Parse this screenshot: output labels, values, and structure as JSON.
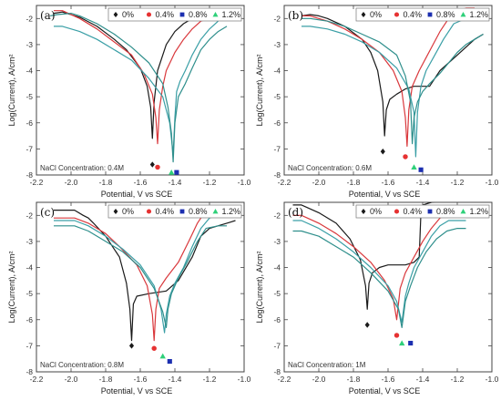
{
  "figure": {
    "legend_entries": [
      {
        "label": "0%",
        "color": "#1a1a1a",
        "marker": "diamond"
      },
      {
        "label": "0.4%",
        "color": "#e63232",
        "marker": "circle"
      },
      {
        "label": "0.8%",
        "color": "#1c2fb0",
        "marker": "square"
      },
      {
        "label": "1.2%",
        "color": "#2fd07a",
        "marker": "triangle"
      }
    ],
    "line_colors": [
      "#1a1a1a",
      "#d9383c",
      "#3a9fa6",
      "#2f8f8c"
    ]
  },
  "chart_data": [
    {
      "type": "line",
      "panel_label": "(a)",
      "xlabel": "Potential,   V vs SCE",
      "ylabel": "Log(Current), A/cm²",
      "xlim": [
        -2.2,
        -1.0
      ],
      "ylim": [
        -8,
        -1.5
      ],
      "xticks": [
        "-2.2",
        "-2.0",
        "-1.8",
        "-1.6",
        "-1.4",
        "-1.2",
        "-1.0"
      ],
      "yticks": [
        "-2",
        "-3",
        "-4",
        "-5",
        "-6",
        "-7",
        "-8"
      ],
      "annotation": "NaCl Concentration: 0.4M",
      "legend_position": "top-right",
      "series": [
        {
          "legend": "0%",
          "x": [
            -2.1,
            -2.05,
            -1.95,
            -1.85,
            -1.75,
            -1.68,
            -1.6,
            -1.56,
            -1.54,
            -1.53,
            -1.52,
            -1.5,
            -1.45,
            -1.4,
            -1.35,
            -1.3,
            -1.25,
            -1.2,
            -1.15
          ],
          "y": [
            -1.8,
            -1.75,
            -1.95,
            -2.3,
            -2.8,
            -3.2,
            -3.9,
            -4.6,
            -5.4,
            -6.6,
            -5.2,
            -4.0,
            -3.0,
            -2.5,
            -2.2,
            -2.0,
            -1.85,
            -1.75,
            -1.7
          ]
        },
        {
          "legend": "0.4%",
          "x": [
            -2.1,
            -2.05,
            -1.95,
            -1.85,
            -1.75,
            -1.65,
            -1.58,
            -1.53,
            -1.51,
            -1.5,
            -1.49,
            -1.47,
            -1.45,
            -1.4,
            -1.35,
            -1.3,
            -1.25,
            -1.2,
            -1.15
          ],
          "y": [
            -1.7,
            -1.7,
            -2.0,
            -2.4,
            -2.9,
            -3.4,
            -4.1,
            -4.9,
            -5.8,
            -6.8,
            -5.5,
            -4.6,
            -4.0,
            -3.3,
            -2.8,
            -2.4,
            -2.1,
            -2.0,
            -1.9
          ]
        },
        {
          "legend": "0.8%",
          "x": [
            -2.1,
            -2.05,
            -1.95,
            -1.85,
            -1.75,
            -1.65,
            -1.55,
            -1.47,
            -1.43,
            -1.41,
            -1.4,
            -1.39,
            -1.37,
            -1.34,
            -1.3,
            -1.25,
            -1.2,
            -1.15
          ],
          "y": [
            -2.3,
            -2.3,
            -2.5,
            -2.8,
            -3.2,
            -3.6,
            -4.3,
            -5.0,
            -6.0,
            -7.2,
            -5.8,
            -4.8,
            -4.4,
            -4.0,
            -3.4,
            -2.8,
            -2.4,
            -2.1
          ]
        },
        {
          "legend": "1.2%",
          "x": [
            -2.12,
            -2.08,
            -2.0,
            -1.95,
            -1.85,
            -1.75,
            -1.65,
            -1.55,
            -1.47,
            -1.44,
            -1.42,
            -1.41,
            -1.4,
            -1.38,
            -1.34,
            -1.3,
            -1.25,
            -1.2,
            -1.15,
            -1.1
          ],
          "y": [
            -1.9,
            -1.85,
            -1.8,
            -1.9,
            -2.2,
            -2.6,
            -3.1,
            -3.7,
            -4.5,
            -5.4,
            -6.4,
            -7.5,
            -6.0,
            -5.0,
            -4.5,
            -3.9,
            -3.2,
            -2.8,
            -2.5,
            -2.3
          ]
        }
      ],
      "markers": [
        {
          "legend": "0%",
          "x": -1.53,
          "y": -7.6
        },
        {
          "legend": "0.4%",
          "x": -1.5,
          "y": -7.7
        },
        {
          "legend": "1.2%",
          "x": -1.42,
          "y": -7.9
        },
        {
          "legend": "0.8%",
          "x": -1.39,
          "y": -7.9
        }
      ]
    },
    {
      "type": "line",
      "panel_label": "(b)",
      "xlabel": "Potential,   V vs SCE",
      "ylabel": "Log(Current), A/cm²",
      "xlim": [
        -2.2,
        -1.0
      ],
      "ylim": [
        -8,
        -1.5
      ],
      "xticks": [
        "-2.2",
        "-2.0",
        "-1.8",
        "-1.6",
        "-1.4",
        "-1.2",
        "-1.0"
      ],
      "yticks": [
        "-2",
        "-3",
        "-4",
        "-5",
        "-6",
        "-7",
        "-8"
      ],
      "annotation": "NaCl Concentration: 0.6M",
      "legend_position": "top-right",
      "series": [
        {
          "legend": "0%",
          "x": [
            -2.1,
            -2.05,
            -2.0,
            -1.95,
            -1.85,
            -1.75,
            -1.7,
            -1.66,
            -1.63,
            -1.62,
            -1.61,
            -1.59,
            -1.55,
            -1.5,
            -1.45,
            -1.4,
            -1.36,
            -1.3,
            -1.2,
            -1.1,
            -1.05
          ],
          "y": [
            -1.9,
            -1.85,
            -1.9,
            -2.0,
            -2.3,
            -2.8,
            -3.3,
            -4.0,
            -5.2,
            -6.5,
            -5.5,
            -5.1,
            -4.9,
            -4.7,
            -4.6,
            -4.6,
            -4.6,
            -4.0,
            -3.4,
            -2.8,
            -2.6
          ]
        },
        {
          "legend": "0.4%",
          "x": [
            -2.1,
            -2.05,
            -1.95,
            -1.85,
            -1.75,
            -1.65,
            -1.57,
            -1.52,
            -1.5,
            -1.49,
            -1.48,
            -1.46,
            -1.42,
            -1.38,
            -1.34,
            -1.3,
            -1.25,
            -1.2,
            -1.15,
            -1.1
          ],
          "y": [
            -1.9,
            -1.9,
            -2.1,
            -2.4,
            -2.8,
            -3.3,
            -4.0,
            -4.8,
            -5.8,
            -6.9,
            -5.5,
            -4.6,
            -4.0,
            -3.5,
            -3.0,
            -2.5,
            -2.0,
            -1.7,
            -1.6,
            -1.6
          ]
        },
        {
          "legend": "0.8%",
          "x": [
            -2.1,
            -2.05,
            -1.95,
            -1.85,
            -1.75,
            -1.65,
            -1.55,
            -1.48,
            -1.45,
            -1.44,
            -1.43,
            -1.41,
            -1.38,
            -1.33,
            -1.28,
            -1.22,
            -1.15,
            -1.1
          ],
          "y": [
            -2.3,
            -2.3,
            -2.4,
            -2.6,
            -2.9,
            -3.3,
            -3.9,
            -4.7,
            -5.6,
            -7.3,
            -5.6,
            -4.6,
            -4.0,
            -3.4,
            -2.8,
            -2.2,
            -2.0,
            -2.0
          ]
        },
        {
          "legend": "1.2%",
          "x": [
            -2.1,
            -2.05,
            -1.95,
            -1.85,
            -1.75,
            -1.65,
            -1.55,
            -1.5,
            -1.47,
            -1.46,
            -1.45,
            -1.43,
            -1.4,
            -1.36,
            -1.3,
            -1.25,
            -1.2,
            -1.15,
            -1.1,
            -1.05
          ],
          "y": [
            -2.0,
            -2.0,
            -2.1,
            -2.3,
            -2.6,
            -2.9,
            -3.4,
            -4.2,
            -5.2,
            -6.8,
            -5.8,
            -5.2,
            -4.8,
            -4.5,
            -4.1,
            -3.7,
            -3.3,
            -3.0,
            -2.8,
            -2.6
          ]
        }
      ],
      "markers": [
        {
          "legend": "0%",
          "x": -1.63,
          "y": -7.1
        },
        {
          "legend": "0.4%",
          "x": -1.5,
          "y": -7.3
        },
        {
          "legend": "1.2%",
          "x": -1.45,
          "y": -7.7
        },
        {
          "legend": "0.8%",
          "x": -1.41,
          "y": -7.8
        }
      ]
    },
    {
      "type": "line",
      "panel_label": "(c)",
      "xlabel": "Potential,   V vs SCE",
      "ylabel": "Log(Current), A/cm²",
      "xlim": [
        -2.2,
        -1.0
      ],
      "ylim": [
        -8,
        -1.5
      ],
      "xticks": [
        "-2.2",
        "-2.0",
        "-1.8",
        "-1.6",
        "-1.4",
        "-1.2",
        "-1.0"
      ],
      "yticks": [
        "-2",
        "-3",
        "-4",
        "-5",
        "-6",
        "-7",
        "-8"
      ],
      "annotation": "NaCl Concentration: 0.8M",
      "legend_position": "top-right",
      "series": [
        {
          "legend": "0%",
          "x": [
            -2.1,
            -1.98,
            -1.93,
            -1.9,
            -1.87,
            -1.8,
            -1.72,
            -1.68,
            -1.66,
            -1.65,
            -1.64,
            -1.62,
            -1.55,
            -1.45,
            -1.38,
            -1.3,
            -1.25,
            -1.2,
            -1.1,
            -1.05
          ],
          "y": [
            -1.8,
            -1.8,
            -2.0,
            -2.1,
            -2.3,
            -2.8,
            -3.6,
            -4.6,
            -5.6,
            -6.8,
            -5.4,
            -5.1,
            -5.0,
            -4.9,
            -4.5,
            -3.6,
            -2.8,
            -2.5,
            -2.3,
            -2.2
          ]
        },
        {
          "legend": "0.4%",
          "x": [
            -2.1,
            -1.98,
            -1.9,
            -1.8,
            -1.72,
            -1.62,
            -1.56,
            -1.53,
            -1.52,
            -1.51,
            -1.49,
            -1.45,
            -1.38,
            -1.32,
            -1.27,
            -1.22,
            -1.15,
            -1.1
          ],
          "y": [
            -2.1,
            -2.1,
            -2.3,
            -2.7,
            -3.2,
            -3.9,
            -4.7,
            -5.8,
            -6.8,
            -5.6,
            -4.8,
            -4.4,
            -3.8,
            -3.0,
            -2.3,
            -1.8,
            -1.7,
            -1.7
          ]
        },
        {
          "legend": "0.8%",
          "x": [
            -2.1,
            -1.98,
            -1.9,
            -1.8,
            -1.7,
            -1.6,
            -1.52,
            -1.48,
            -1.46,
            -1.45,
            -1.43,
            -1.4,
            -1.35,
            -1.3,
            -1.25,
            -1.2,
            -1.15,
            -1.1
          ],
          "y": [
            -2.2,
            -2.2,
            -2.4,
            -2.8,
            -3.3,
            -3.9,
            -4.7,
            -5.6,
            -6.5,
            -5.8,
            -5.1,
            -4.6,
            -4.0,
            -3.2,
            -2.5,
            -2.1,
            -2.0,
            -2.0
          ]
        },
        {
          "legend": "1.2%",
          "x": [
            -2.1,
            -1.98,
            -1.9,
            -1.8,
            -1.7,
            -1.6,
            -1.52,
            -1.47,
            -1.45,
            -1.44,
            -1.42,
            -1.38,
            -1.33,
            -1.27,
            -1.22,
            -1.15,
            -1.1
          ],
          "y": [
            -2.4,
            -2.4,
            -2.6,
            -3.0,
            -3.4,
            -4.0,
            -4.8,
            -5.7,
            -6.3,
            -5.6,
            -5.0,
            -4.4,
            -3.8,
            -3.0,
            -2.5,
            -2.4,
            -2.4
          ]
        }
      ],
      "markers": [
        {
          "legend": "0%",
          "x": -1.65,
          "y": -7.0
        },
        {
          "legend": "0.4%",
          "x": -1.52,
          "y": -7.1
        },
        {
          "legend": "1.2%",
          "x": -1.47,
          "y": -7.4
        },
        {
          "legend": "0.8%",
          "x": -1.43,
          "y": -7.6
        }
      ]
    },
    {
      "type": "line",
      "panel_label": "(d)",
      "xlabel": "Potential,   V vs SCE",
      "ylabel": "Log(Current), A/cm²",
      "xlim": [
        -2.2,
        -1.0
      ],
      "ylim": [
        -8,
        -1.5
      ],
      "xticks": [
        "-2.2",
        "-2.0",
        "-1.8",
        "-1.6",
        "-1.4",
        "-1.2",
        "-1.0"
      ],
      "yticks": [
        "-2",
        "-3",
        "-4",
        "-5",
        "-6",
        "-7",
        "-8"
      ],
      "annotation": "NaCl Concentration: 1M",
      "legend_position": "top-right",
      "series": [
        {
          "legend": "0%",
          "x": [
            -2.15,
            -2.1,
            -2.0,
            -1.9,
            -1.82,
            -1.76,
            -1.73,
            -1.72,
            -1.71,
            -1.69,
            -1.65,
            -1.6,
            -1.55,
            -1.5,
            -1.45,
            -1.42,
            -1.41,
            -1.4,
            -1.35,
            -1.3,
            -1.25,
            -1.2,
            -1.15
          ],
          "y": [
            -1.6,
            -1.6,
            -1.9,
            -2.3,
            -2.9,
            -3.7,
            -4.7,
            -5.6,
            -4.6,
            -4.2,
            -4.0,
            -3.9,
            -3.9,
            -3.9,
            -3.8,
            -3.6,
            -1.9,
            -1.6,
            -1.5,
            -1.45,
            -1.45,
            -1.4,
            -1.4
          ]
        },
        {
          "legend": "0.4%",
          "x": [
            -2.15,
            -2.1,
            -2.0,
            -1.9,
            -1.8,
            -1.7,
            -1.62,
            -1.57,
            -1.55,
            -1.54,
            -1.53,
            -1.5,
            -1.45,
            -1.4,
            -1.35,
            -1.3,
            -1.25,
            -1.2
          ],
          "y": [
            -2.0,
            -2.0,
            -2.3,
            -2.7,
            -3.2,
            -3.8,
            -4.5,
            -5.2,
            -6.0,
            -5.4,
            -4.8,
            -4.2,
            -3.6,
            -3.0,
            -2.5,
            -2.1,
            -1.9,
            -1.9
          ]
        },
        {
          "legend": "0.8%",
          "x": [
            -2.15,
            -2.1,
            -2.0,
            -1.9,
            -1.8,
            -1.7,
            -1.6,
            -1.55,
            -1.52,
            -1.51,
            -1.5,
            -1.48,
            -1.45,
            -1.4,
            -1.35,
            -1.3,
            -1.25,
            -1.2,
            -1.15
          ],
          "y": [
            -2.2,
            -2.2,
            -2.5,
            -2.9,
            -3.4,
            -4.0,
            -4.7,
            -5.3,
            -6.1,
            -5.6,
            -5.1,
            -4.6,
            -4.0,
            -3.4,
            -2.8,
            -2.4,
            -2.2,
            -2.2,
            -2.2
          ]
        },
        {
          "legend": "1.2%",
          "x": [
            -2.15,
            -2.1,
            -2.0,
            -1.9,
            -1.8,
            -1.7,
            -1.6,
            -1.54,
            -1.52,
            -1.51,
            -1.5,
            -1.47,
            -1.43,
            -1.38,
            -1.32,
            -1.26,
            -1.2,
            -1.15
          ],
          "y": [
            -2.6,
            -2.6,
            -2.8,
            -3.2,
            -3.6,
            -4.2,
            -4.9,
            -5.6,
            -6.3,
            -5.8,
            -5.3,
            -4.7,
            -4.0,
            -3.4,
            -2.9,
            -2.6,
            -2.5,
            -2.5
          ]
        }
      ],
      "markers": [
        {
          "legend": "0%",
          "x": -1.72,
          "y": -6.2
        },
        {
          "legend": "0.4%",
          "x": -1.55,
          "y": -6.6
        },
        {
          "legend": "1.2%",
          "x": -1.52,
          "y": -6.9
        },
        {
          "legend": "0.8%",
          "x": -1.47,
          "y": -6.9
        }
      ]
    }
  ]
}
